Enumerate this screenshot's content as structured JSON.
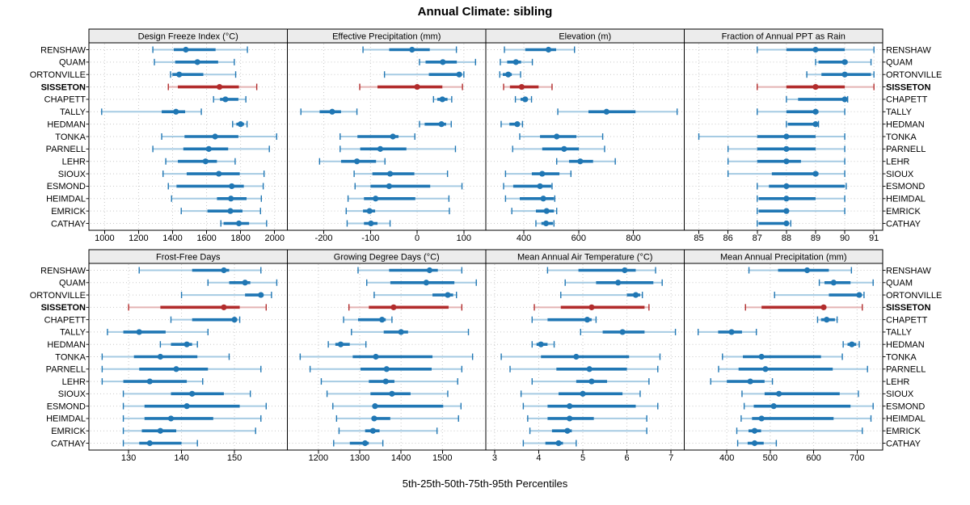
{
  "title": "Annual Climate: sibling",
  "caption": "5th-25th-50th-75th-95th Percentiles",
  "chart_data": {
    "type": "scatter",
    "subtype": "trellis-percentile-dotplot",
    "title": "Annual Climate: sibling",
    "caption": "5th-25th-50th-75th-95th Percentiles",
    "percentiles": [
      5,
      25,
      50,
      75,
      95
    ],
    "grid": {
      "rows": 2,
      "cols": 4
    },
    "legend_position": "none",
    "stations": [
      "RENSHAW",
      "QUAM",
      "ORTONVILLE",
      "SISSETON",
      "CHAPETT",
      "TALLY",
      "HEDMAN",
      "TONKA",
      "PARNELL",
      "LEHR",
      "SIOUX",
      "ESMOND",
      "HEIMDAL",
      "EMRICK",
      "CATHAY"
    ],
    "highlight_station": "SISSETON",
    "colors": {
      "series": "#2077b4",
      "series_light": "#a6cbe3",
      "highlight": "#b22c2c",
      "highlight_light": "#e4b3b3",
      "strip_bg": "#ececec",
      "grid_line": "#c9c9c9",
      "border": "#000000",
      "text": "#000000"
    },
    "panels": [
      {
        "title": "Design Freeze Index (°C)",
        "ticks": [
          1000,
          1200,
          1400,
          1600,
          1800,
          2000
        ],
        "xlim": [
          908,
          2075
        ],
        "values": [
          [
            1284,
            1407,
            1478,
            1653,
            1840
          ],
          [
            1293,
            1415,
            1546,
            1668,
            1763
          ],
          [
            1388,
            1399,
            1439,
            1581,
            1771
          ],
          [
            1375,
            1431,
            1676,
            1790,
            1895
          ],
          [
            1641,
            1679,
            1711,
            1787,
            1831
          ],
          [
            983,
            1336,
            1420,
            1474,
            1569
          ],
          [
            1753,
            1775,
            1800,
            1820,
            1838
          ],
          [
            1336,
            1470,
            1650,
            1787,
            2012
          ],
          [
            1284,
            1463,
            1613,
            1727,
            1969
          ],
          [
            1360,
            1431,
            1594,
            1661,
            1768
          ],
          [
            1344,
            1483,
            1672,
            1795,
            1938
          ],
          [
            1375,
            1423,
            1748,
            1819,
            1933
          ],
          [
            1394,
            1661,
            1743,
            1835,
            1922
          ],
          [
            1451,
            1605,
            1740,
            1811,
            1917
          ],
          [
            1684,
            1700,
            1790,
            1850,
            1953
          ]
        ]
      },
      {
        "title": "Effective Precipitation (mm)",
        "ticks": [
          -200,
          -100,
          0,
          100
        ],
        "xlim": [
          -278,
          147
        ],
        "values": [
          [
            -116,
            -60,
            -11,
            27,
            84
          ],
          [
            5,
            18,
            55,
            85,
            125
          ],
          [
            -70,
            25,
            90,
            96,
            100
          ],
          [
            -123,
            -85,
            0,
            54,
            97
          ],
          [
            35,
            43,
            54,
            65,
            74
          ],
          [
            -249,
            -209,
            -182,
            -163,
            -129
          ],
          [
            5,
            16,
            52,
            62,
            73
          ],
          [
            -165,
            -128,
            -52,
            -40,
            -5
          ],
          [
            -165,
            -122,
            -79,
            -23,
            82
          ],
          [
            -209,
            -163,
            -129,
            -88,
            -69
          ],
          [
            -135,
            -96,
            -58,
            -6,
            65
          ],
          [
            -133,
            -100,
            -60,
            28,
            96
          ],
          [
            -148,
            -114,
            -89,
            -4,
            68
          ],
          [
            -152,
            -116,
            -102,
            -90,
            69
          ],
          [
            -150,
            -114,
            -99,
            -85,
            -58
          ]
        ]
      },
      {
        "title": "Elevation (m)",
        "ticks": [
          400,
          600,
          800
        ],
        "xlim": [
          261,
          986
        ],
        "values": [
          [
            329,
            405,
            490,
            518,
            585
          ],
          [
            314,
            339,
            371,
            390,
            431
          ],
          [
            312,
            323,
            343,
            356,
            388
          ],
          [
            326,
            349,
            392,
            454,
            503
          ],
          [
            369,
            388,
            405,
            412,
            428
          ],
          [
            524,
            636,
            702,
            808,
            960
          ],
          [
            317,
            347,
            376,
            382,
            395
          ],
          [
            385,
            459,
            520,
            592,
            688
          ],
          [
            359,
            467,
            547,
            601,
            695
          ],
          [
            520,
            565,
            606,
            653,
            734
          ],
          [
            333,
            429,
            467,
            530,
            572
          ],
          [
            326,
            361,
            459,
            500,
            503
          ],
          [
            333,
            385,
            471,
            510,
            513
          ],
          [
            356,
            444,
            483,
            510,
            520
          ],
          [
            444,
            464,
            481,
            506,
            510
          ]
        ]
      },
      {
        "title": "Fraction of Annual PPT as Rain",
        "ticks": [
          85,
          86,
          87,
          88,
          89,
          90,
          91
        ],
        "xlim": [
          84.5,
          91.3
        ],
        "values": [
          [
            87,
            88,
            89,
            90,
            91
          ],
          [
            89,
            89.1,
            90,
            90.1,
            90.9
          ],
          [
            88.7,
            89.2,
            90,
            90.9,
            91
          ],
          [
            87,
            88,
            89,
            90,
            91
          ],
          [
            88,
            88.4,
            90,
            90,
            90.1
          ],
          [
            87,
            88,
            89,
            89.1,
            90
          ],
          [
            88,
            88.05,
            89,
            89.05,
            89.1
          ],
          [
            85,
            87,
            88,
            89,
            90
          ],
          [
            86,
            87,
            88,
            89,
            90
          ],
          [
            86,
            87,
            88,
            88.5,
            90
          ],
          [
            86,
            87.5,
            89,
            89.1,
            90
          ],
          [
            87,
            87.4,
            88,
            90,
            90.05
          ],
          [
            87,
            87.05,
            88,
            89,
            90
          ],
          [
            87,
            87.05,
            88,
            88.05,
            90
          ],
          [
            87,
            87.05,
            88,
            88.05,
            88.15
          ]
        ]
      },
      {
        "title": "Frost-Free Days",
        "ticks": [
          130,
          140,
          150
        ],
        "xlim": [
          122.5,
          160
        ],
        "values": [
          [
            132,
            142,
            148,
            149,
            155
          ],
          [
            145,
            149,
            152,
            153,
            158
          ],
          [
            140,
            152,
            155,
            155.5,
            157
          ],
          [
            130,
            136,
            148,
            151,
            156
          ],
          [
            138,
            142,
            150,
            150.5,
            151
          ],
          [
            126,
            129,
            132,
            137,
            145
          ],
          [
            136,
            138,
            141,
            142,
            143
          ],
          [
            125,
            131,
            136,
            143,
            149
          ],
          [
            125,
            132,
            139,
            145,
            155
          ],
          [
            125,
            129,
            134,
            141,
            144
          ],
          [
            129,
            138,
            142,
            148,
            153
          ],
          [
            129,
            133,
            141,
            151,
            156
          ],
          [
            129,
            133,
            138,
            146,
            155
          ],
          [
            129,
            132.5,
            136,
            139,
            154
          ],
          [
            129,
            132,
            134,
            140,
            143
          ]
        ]
      },
      {
        "title": "Growing Degree Days (°C)",
        "ticks": [
          1200,
          1300,
          1400,
          1500
        ],
        "xlim": [
          1125,
          1605
        ],
        "values": [
          [
            1296,
            1371,
            1469,
            1489,
            1547
          ],
          [
            1317,
            1374,
            1461,
            1529,
            1582
          ],
          [
            1335,
            1476,
            1513,
            1526,
            1534
          ],
          [
            1274,
            1322,
            1382,
            1515,
            1547
          ],
          [
            1261,
            1296,
            1354,
            1363,
            1378
          ],
          [
            1280,
            1358,
            1400,
            1417,
            1563
          ],
          [
            1224,
            1241,
            1254,
            1276,
            1315
          ],
          [
            1156,
            1283,
            1339,
            1476,
            1573
          ],
          [
            1180,
            1302,
            1365,
            1474,
            1547
          ],
          [
            1207,
            1322,
            1363,
            1384,
            1537
          ],
          [
            1221,
            1326,
            1378,
            1423,
            1513
          ],
          [
            1235,
            1332,
            1337,
            1502,
            1545
          ],
          [
            1244,
            1332,
            1335,
            1374,
            1539
          ],
          [
            1250,
            1313,
            1332,
            1348,
            1487
          ],
          [
            1237,
            1276,
            1313,
            1322,
            1356
          ]
        ]
      },
      {
        "title": "Mean Annual Air Temperature (°C)",
        "ticks": [
          3,
          4,
          5,
          6,
          7
        ],
        "xlim": [
          2.8,
          7.3
        ],
        "values": [
          [
            4.2,
            4.9,
            5.95,
            6.2,
            6.65
          ],
          [
            4.6,
            5.3,
            5.8,
            6.6,
            6.8
          ],
          [
            4.5,
            6.0,
            6.2,
            6.3,
            6.35
          ],
          [
            3.9,
            4.5,
            5.2,
            6.4,
            6.5
          ],
          [
            3.85,
            4.2,
            5.1,
            5.2,
            5.3
          ],
          [
            4.95,
            5.45,
            5.9,
            6.4,
            7.1
          ],
          [
            3.85,
            3.95,
            4.05,
            4.2,
            4.35
          ],
          [
            3.15,
            4.05,
            4.85,
            6.05,
            6.75
          ],
          [
            3.35,
            4.4,
            5.15,
            6.0,
            6.7
          ],
          [
            3.85,
            4.85,
            5.2,
            5.55,
            6.5
          ],
          [
            3.6,
            4.45,
            5.0,
            5.9,
            6.3
          ],
          [
            3.65,
            4.2,
            4.7,
            6.2,
            6.7
          ],
          [
            3.75,
            4.2,
            4.7,
            5.25,
            6.45
          ],
          [
            3.8,
            4.3,
            4.65,
            4.75,
            6.45
          ],
          [
            3.65,
            4.15,
            4.45,
            4.55,
            4.85
          ]
        ]
      },
      {
        "title": "Mean Annual Precipitation (mm)",
        "ticks": [
          400,
          500,
          600,
          700
        ],
        "xlim": [
          302,
          759
        ],
        "values": [
          [
            451,
            518,
            585,
            635,
            687
          ],
          [
            613,
            625,
            646,
            685,
            737
          ],
          [
            510,
            635,
            705,
            710,
            716
          ],
          [
            443,
            480,
            623,
            629,
            712
          ],
          [
            609,
            617,
            630,
            649,
            654
          ],
          [
            334,
            380,
            411,
            435,
            468
          ],
          [
            668,
            678,
            688,
            698,
            705
          ],
          [
            390,
            437,
            480,
            617,
            666
          ],
          [
            381,
            427,
            489,
            644,
            724
          ],
          [
            363,
            400,
            454,
            487,
            505
          ],
          [
            435,
            487,
            520,
            660,
            703
          ],
          [
            440,
            462,
            508,
            685,
            737
          ],
          [
            433,
            458,
            480,
            646,
            732
          ],
          [
            423,
            450,
            464,
            479,
            712
          ],
          [
            425,
            448,
            464,
            485,
            514
          ]
        ]
      }
    ]
  }
}
